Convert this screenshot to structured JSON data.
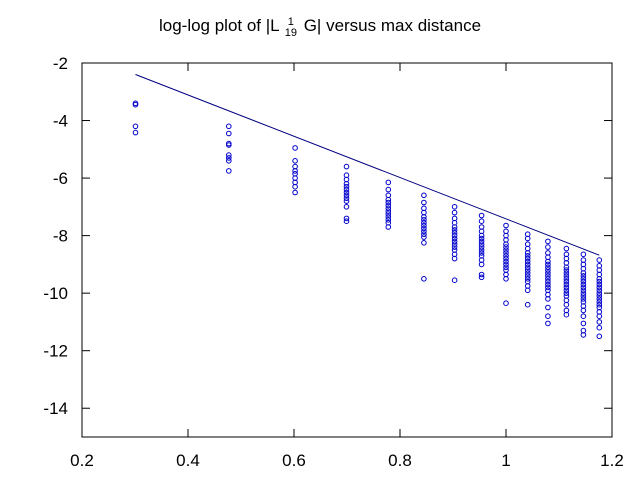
{
  "chart_data": {
    "type": "scatter",
    "title_parts": {
      "before": "log-log plot of |L ",
      "sup": "1",
      "sub": "19",
      "after": " G| versus max distance"
    },
    "xlabel": "",
    "ylabel": "",
    "xlim": [
      0.2,
      1.2
    ],
    "ylim": [
      -15,
      -2
    ],
    "xticks": [
      0.2,
      0.4,
      0.6,
      0.8,
      1.0,
      1.2
    ],
    "xtick_labels": [
      "0.2",
      "0.4",
      "0.6",
      "0.8",
      "1",
      "1.2"
    ],
    "yticks": [
      -2,
      -4,
      -6,
      -8,
      -10,
      -12,
      -14
    ],
    "ytick_labels": [
      "-2",
      "-4",
      "-6",
      "-8",
      "-10",
      "-12",
      "-14"
    ],
    "grid": false,
    "colors": {
      "points": "#0000cc",
      "line": "#000080",
      "axes": "#000000"
    },
    "series": [
      {
        "type": "line",
        "values": [
          [
            0.301,
            -2.4
          ],
          [
            1.176,
            -8.68
          ]
        ]
      },
      {
        "type": "scatter",
        "marker": "circle-open",
        "columns": [
          {
            "x": 0.301,
            "y": [
              -3.4,
              -3.45,
              -4.2,
              -4.42
            ]
          },
          {
            "x": 0.477,
            "y": [
              -4.2,
              -4.45,
              -4.8,
              -4.85,
              -5.2,
              -5.3,
              -5.4,
              -5.75
            ]
          },
          {
            "x": 0.602,
            "y": [
              -4.95,
              -5.4,
              -5.6,
              -5.75,
              -5.85,
              -6.0,
              -6.15,
              -6.3,
              -6.5
            ]
          },
          {
            "x": 0.699,
            "y": [
              -5.6,
              -5.9,
              -6.05,
              -6.2,
              -6.3,
              -6.4,
              -6.5,
              -6.6,
              -6.7,
              -6.8,
              -7.0,
              -7.4,
              -7.5
            ]
          },
          {
            "x": 0.778,
            "y": [
              -6.15,
              -6.4,
              -6.6,
              -6.75,
              -6.85,
              -6.95,
              -7.05,
              -7.15,
              -7.25,
              -7.35,
              -7.45,
              -7.55,
              -7.7
            ]
          },
          {
            "x": 0.845,
            "y": [
              -6.6,
              -6.85,
              -7.05,
              -7.2,
              -7.35,
              -7.45,
              -7.55,
              -7.65,
              -7.75,
              -7.85,
              -7.95,
              -8.05,
              -8.25,
              -9.5
            ]
          },
          {
            "x": 0.903,
            "y": [
              -7.0,
              -7.2,
              -7.4,
              -7.55,
              -7.7,
              -7.8,
              -7.9,
              -8.0,
              -8.1,
              -8.2,
              -8.3,
              -8.4,
              -8.5,
              -8.65,
              -8.8,
              -9.55
            ]
          },
          {
            "x": 0.954,
            "y": [
              -7.3,
              -7.5,
              -7.7,
              -7.85,
              -8.0,
              -8.1,
              -8.2,
              -8.3,
              -8.4,
              -8.5,
              -8.6,
              -8.7,
              -8.85,
              -9.0,
              -9.35,
              -9.45
            ]
          },
          {
            "x": 1.0,
            "y": [
              -7.65,
              -7.85,
              -8.0,
              -8.15,
              -8.3,
              -8.4,
              -8.5,
              -8.6,
              -8.7,
              -8.8,
              -8.9,
              -9.0,
              -9.1,
              -9.2,
              -9.35,
              -9.5,
              -10.35
            ]
          },
          {
            "x": 1.041,
            "y": [
              -7.95,
              -8.1,
              -8.3,
              -8.45,
              -8.6,
              -8.7,
              -8.8,
              -8.9,
              -9.0,
              -9.1,
              -9.2,
              -9.3,
              -9.4,
              -9.5,
              -9.6,
              -9.75,
              -9.9,
              -10.4
            ]
          },
          {
            "x": 1.079,
            "y": [
              -8.2,
              -8.4,
              -8.6,
              -8.75,
              -8.9,
              -9.0,
              -9.1,
              -9.2,
              -9.3,
              -9.4,
              -9.5,
              -9.6,
              -9.7,
              -9.8,
              -9.9,
              -10.05,
              -10.2,
              -10.5,
              -10.8,
              -11.05
            ]
          },
          {
            "x": 1.114,
            "y": [
              -8.45,
              -8.65,
              -8.8,
              -8.95,
              -9.1,
              -9.2,
              -9.3,
              -9.4,
              -9.5,
              -9.6,
              -9.7,
              -9.8,
              -9.9,
              -10.0,
              -10.1,
              -10.25,
              -10.4,
              -10.6,
              -10.75
            ]
          },
          {
            "x": 1.146,
            "y": [
              -8.65,
              -8.85,
              -9.0,
              -9.15,
              -9.3,
              -9.4,
              -9.5,
              -9.6,
              -9.7,
              -9.8,
              -9.9,
              -10.0,
              -10.1,
              -10.2,
              -10.3,
              -10.45,
              -10.6,
              -10.8,
              -11.05,
              -11.3,
              -11.45
            ]
          },
          {
            "x": 1.176,
            "y": [
              -8.85,
              -9.05,
              -9.2,
              -9.35,
              -9.5,
              -9.6,
              -9.7,
              -9.8,
              -9.9,
              -10.0,
              -10.1,
              -10.2,
              -10.3,
              -10.4,
              -10.5,
              -10.65,
              -10.8,
              -11.0,
              -11.2,
              -11.5
            ]
          }
        ]
      }
    ]
  }
}
